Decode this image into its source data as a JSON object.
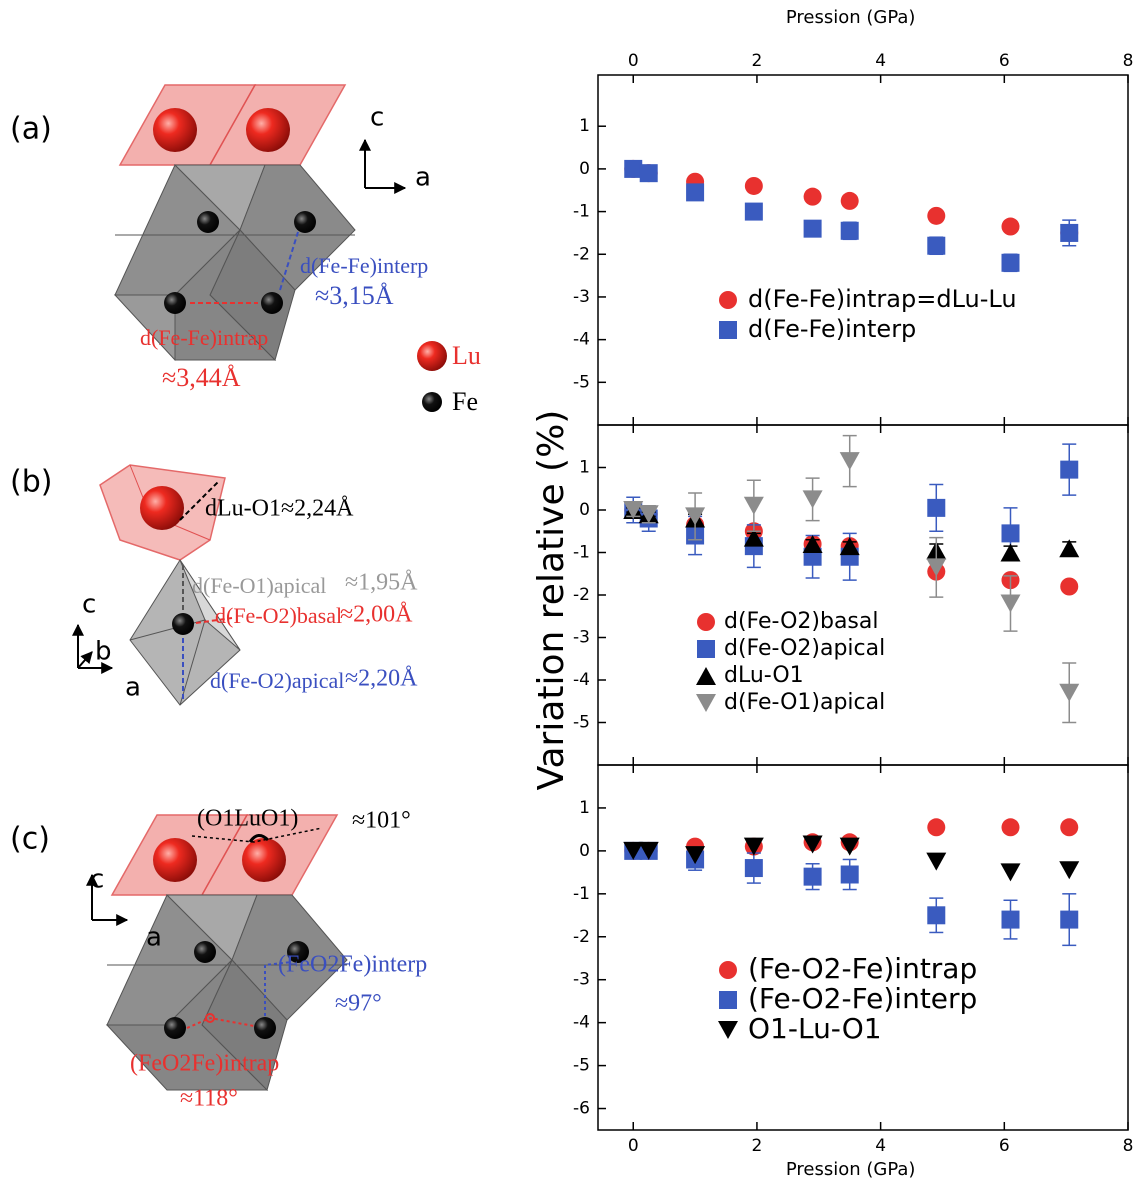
{
  "diagrams": [
    {
      "label": "(a)",
      "axes": [
        "c",
        "a"
      ],
      "annotations": [
        {
          "text": "d(Fe-Fe)interp",
          "color": "#3a4fc0"
        },
        {
          "text": "≈3,15Å",
          "color": "#3a4fc0"
        },
        {
          "text": "d(Fe-Fe)intrap",
          "color": "#e8312f"
        },
        {
          "text": "≈3,44Å",
          "color": "#e8312f"
        }
      ],
      "legend": [
        {
          "text": "Lu",
          "color": "#e8312f"
        },
        {
          "text": "Fe",
          "color": "#000000"
        }
      ]
    },
    {
      "label": "(b)",
      "axes": [
        "c",
        "b",
        "a"
      ],
      "annotations": [
        {
          "text": "dLu-O1≈2,24Å",
          "color": "#000000"
        },
        {
          "text": "d(Fe-O1)apical",
          "color": "#999999"
        },
        {
          "text": "≈1,95Å",
          "color": "#999999"
        },
        {
          "text": "d(Fe-O2)basal",
          "color": "#e8312f"
        },
        {
          "text": "≈2,00Å",
          "color": "#e8312f"
        },
        {
          "text": "d(Fe-O2)apical",
          "color": "#3a4fc0"
        },
        {
          "text": "≈2,20Å",
          "color": "#3a4fc0"
        }
      ]
    },
    {
      "label": "(c)",
      "axes": [
        "c",
        "a"
      ],
      "annotations": [
        {
          "text": "(O1LuO1)",
          "color": "#000000"
        },
        {
          "text": "≈101°",
          "color": "#000000"
        },
        {
          "text": "(FeO2Fe)interp",
          "color": "#3a4fc0"
        },
        {
          "text": "≈97°",
          "color": "#3a4fc0"
        },
        {
          "text": "(FeO2Fe)intrap",
          "color": "#e8312f"
        },
        {
          "text": "≈118°",
          "color": "#e8312f"
        }
      ]
    }
  ],
  "chart_data": [
    {
      "type": "scatter",
      "x_label": "Pression (GPa)",
      "x_axis_position": "top",
      "x": [
        0,
        0.25,
        1,
        1.95,
        2.9,
        3.5,
        4.9,
        6.1,
        7.05
      ],
      "xlim": [
        -0.57,
        8
      ],
      "xticks": [
        0,
        2,
        4,
        6,
        8
      ],
      "ylim": [
        -6,
        2.2
      ],
      "yticks": [
        1,
        0,
        -1,
        -2,
        -3,
        -4,
        -5
      ],
      "series": [
        {
          "name": "d(Fe-Fe)intrap=dLu-Lu",
          "color": "#e8312f",
          "marker": "circle",
          "values": [
            0,
            -0.1,
            -0.3,
            -0.4,
            -0.65,
            -0.75,
            -1.1,
            -1.35,
            -1.5
          ]
        },
        {
          "name": "d(Fe-Fe)interp",
          "color": "#3a5bbf",
          "marker": "square",
          "values": [
            0,
            -0.1,
            -0.55,
            -1.0,
            -1.4,
            -1.45,
            -1.8,
            -2.2,
            -1.5
          ],
          "errors": [
            0.1,
            0.1,
            0.1,
            0.15,
            0.15,
            0.2,
            0.2,
            0.2,
            0.3
          ]
        }
      ]
    },
    {
      "type": "scatter",
      "y_label": "Variation relative (%)",
      "x": [
        0,
        0.25,
        1,
        1.95,
        2.9,
        3.5,
        4.9,
        6.1,
        7.05
      ],
      "xlim": [
        -0.57,
        8
      ],
      "xticks": [
        0,
        2,
        4,
        6,
        8
      ],
      "ylim": [
        -6,
        2
      ],
      "yticks": [
        1,
        0,
        -1,
        -2,
        -3,
        -4,
        -5
      ],
      "series": [
        {
          "name": "d(Fe-O2)basal",
          "color": "#e8312f",
          "marker": "circle",
          "values": [
            0,
            -0.1,
            -0.35,
            -0.5,
            -0.8,
            -0.85,
            -1.45,
            -1.65,
            -1.8
          ]
        },
        {
          "name": "d(Fe-O2)apical",
          "color": "#3a5bbf",
          "marker": "square",
          "values": [
            0,
            -0.2,
            -0.6,
            -0.85,
            -1.1,
            -1.1,
            0.05,
            -0.55,
            0.95
          ],
          "errors": [
            0.3,
            0.3,
            0.45,
            0.5,
            0.5,
            0.55,
            0.55,
            0.6,
            0.6
          ]
        },
        {
          "name": "dLu-O1",
          "color": "#000000",
          "marker": "triangle-up",
          "values": [
            0,
            -0.1,
            -0.2,
            -0.65,
            -0.8,
            -0.85,
            -0.95,
            -1.0,
            -0.9
          ],
          "errors": [
            0.05,
            0.05,
            0.1,
            0.1,
            0.1,
            0.1,
            0.15,
            0.15,
            0.15
          ]
        },
        {
          "name": "d(Fe-O1)apical",
          "color": "#8c8c8c",
          "marker": "triangle-down",
          "values": [
            0,
            -0.1,
            -0.15,
            0.1,
            0.25,
            1.15,
            -1.35,
            -2.2,
            -4.3
          ],
          "errors": [
            0.15,
            0.2,
            0.55,
            0.6,
            0.5,
            0.6,
            0.7,
            0.65,
            0.7
          ]
        }
      ]
    },
    {
      "type": "scatter",
      "x_label": "Pression (GPa)",
      "x_axis_position": "bottom",
      "x": [
        0,
        0.25,
        1,
        1.95,
        2.9,
        3.5,
        4.9,
        6.1,
        7.05
      ],
      "xlim": [
        -0.57,
        8
      ],
      "xticks": [
        0,
        2,
        4,
        6,
        8
      ],
      "ylim": [
        -6.5,
        2
      ],
      "yticks": [
        1,
        0,
        -1,
        -2,
        -3,
        -4,
        -5,
        -6
      ],
      "series": [
        {
          "name": "(Fe-O2-Fe)intrap",
          "color": "#e8312f",
          "marker": "circle",
          "values": [
            0,
            0,
            0.1,
            0.1,
            0.2,
            0.2,
            0.55,
            0.55,
            0.55
          ]
        },
        {
          "name": "(Fe-O2-Fe)interp",
          "color": "#3a5bbf",
          "marker": "square",
          "values": [
            0,
            0,
            -0.2,
            -0.4,
            -0.6,
            -0.55,
            -1.5,
            -1.6,
            -1.6
          ],
          "errors": [
            0.1,
            0.1,
            0.25,
            0.35,
            0.3,
            0.35,
            0.4,
            0.45,
            0.6
          ]
        },
        {
          "name": "O1-Lu-O1",
          "color": "#000000",
          "marker": "triangle-down",
          "values": [
            0,
            0,
            -0.1,
            0.1,
            0.15,
            0.1,
            -0.25,
            -0.5,
            -0.45
          ]
        }
      ]
    }
  ]
}
